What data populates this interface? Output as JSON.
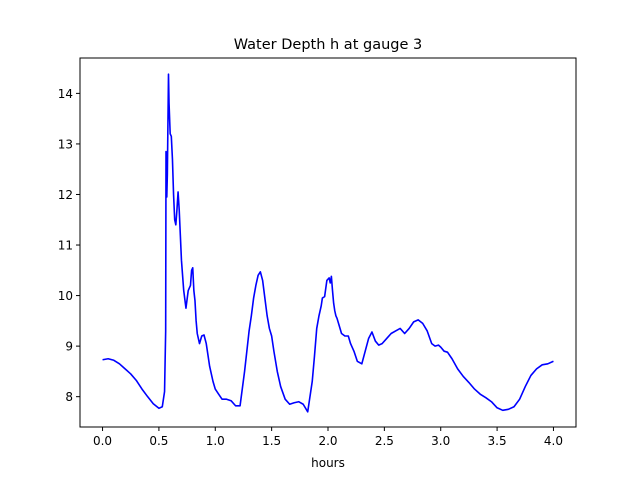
{
  "chart_data": {
    "type": "line",
    "title": "Water Depth h at gauge 3",
    "xlabel": "hours",
    "ylabel": "",
    "xlim": [
      -0.2,
      4.2
    ],
    "ylim": [
      7.4,
      14.7
    ],
    "xticks": [
      0.0,
      0.5,
      1.0,
      1.5,
      2.0,
      2.5,
      3.0,
      3.5,
      4.0
    ],
    "xtick_labels": [
      "0.0",
      "0.5",
      "1.0",
      "1.5",
      "2.0",
      "2.5",
      "3.0",
      "3.5",
      "4.0"
    ],
    "yticks": [
      8,
      9,
      10,
      11,
      12,
      13,
      14
    ],
    "ytick_labels": [
      "8",
      "9",
      "10",
      "11",
      "12",
      "13",
      "14"
    ],
    "grid": false,
    "legend": "none",
    "series": [
      {
        "color": "#0000ff",
        "x": [
          0.0,
          0.05,
          0.1,
          0.15,
          0.2,
          0.25,
          0.3,
          0.35,
          0.4,
          0.45,
          0.5,
          0.53,
          0.55,
          0.56,
          0.563,
          0.565,
          0.57,
          0.575,
          0.58,
          0.585,
          0.59,
          0.6,
          0.61,
          0.62,
          0.63,
          0.64,
          0.65,
          0.66,
          0.67,
          0.68,
          0.69,
          0.7,
          0.72,
          0.74,
          0.76,
          0.78,
          0.79,
          0.8,
          0.81,
          0.82,
          0.83,
          0.84,
          0.86,
          0.88,
          0.9,
          0.92,
          0.95,
          0.98,
          1.0,
          1.03,
          1.06,
          1.1,
          1.14,
          1.18,
          1.22,
          1.26,
          1.28,
          1.3,
          1.32,
          1.34,
          1.36,
          1.38,
          1.4,
          1.42,
          1.44,
          1.46,
          1.48,
          1.5,
          1.52,
          1.55,
          1.58,
          1.62,
          1.66,
          1.7,
          1.74,
          1.78,
          1.82,
          1.86,
          1.88,
          1.9,
          1.92,
          1.94,
          1.95,
          1.97,
          1.99,
          2.01,
          2.02,
          2.03,
          2.04,
          2.05,
          2.06,
          2.07,
          2.08,
          2.1,
          2.12,
          2.15,
          2.18,
          2.2,
          2.23,
          2.26,
          2.3,
          2.33,
          2.36,
          2.39,
          2.42,
          2.45,
          2.48,
          2.52,
          2.56,
          2.6,
          2.64,
          2.68,
          2.72,
          2.76,
          2.8,
          2.84,
          2.88,
          2.92,
          2.95,
          2.98,
          3.0,
          3.03,
          3.06,
          3.1,
          3.15,
          3.2,
          3.25,
          3.3,
          3.35,
          3.4,
          3.45,
          3.5,
          3.55,
          3.6,
          3.65,
          3.7,
          3.75,
          3.8,
          3.85,
          3.9,
          3.95,
          4.0
        ],
        "values": [
          8.73,
          8.75,
          8.72,
          8.65,
          8.55,
          8.45,
          8.32,
          8.15,
          8.0,
          7.86,
          7.77,
          7.8,
          8.1,
          9.3,
          12.85,
          12.6,
          11.95,
          12.4,
          13.4,
          14.38,
          13.8,
          13.2,
          13.15,
          12.7,
          12.0,
          11.5,
          11.4,
          11.7,
          12.05,
          11.7,
          11.2,
          10.7,
          10.1,
          9.75,
          10.1,
          10.2,
          10.5,
          10.55,
          10.1,
          9.9,
          9.5,
          9.25,
          9.05,
          9.2,
          9.22,
          9.05,
          8.6,
          8.3,
          8.15,
          8.05,
          7.95,
          7.95,
          7.92,
          7.82,
          7.82,
          8.5,
          8.9,
          9.3,
          9.6,
          9.95,
          10.2,
          10.4,
          10.47,
          10.3,
          9.95,
          9.6,
          9.35,
          9.2,
          8.9,
          8.5,
          8.2,
          7.95,
          7.85,
          7.88,
          7.9,
          7.85,
          7.7,
          8.3,
          8.8,
          9.35,
          9.6,
          9.8,
          9.95,
          9.98,
          10.3,
          10.35,
          10.25,
          10.38,
          10.1,
          9.85,
          9.7,
          9.6,
          9.55,
          9.4,
          9.25,
          9.2,
          9.2,
          9.05,
          8.9,
          8.7,
          8.65,
          8.9,
          9.15,
          9.28,
          9.1,
          9.02,
          9.05,
          9.15,
          9.25,
          9.3,
          9.35,
          9.25,
          9.35,
          9.48,
          9.52,
          9.45,
          9.3,
          9.05,
          9.0,
          9.02,
          8.98,
          8.9,
          8.88,
          8.75,
          8.55,
          8.4,
          8.28,
          8.15,
          8.05,
          7.98,
          7.9,
          7.78,
          7.73,
          7.75,
          7.8,
          7.95,
          8.2,
          8.42,
          8.55,
          8.63,
          8.65,
          8.7
        ]
      }
    ]
  }
}
